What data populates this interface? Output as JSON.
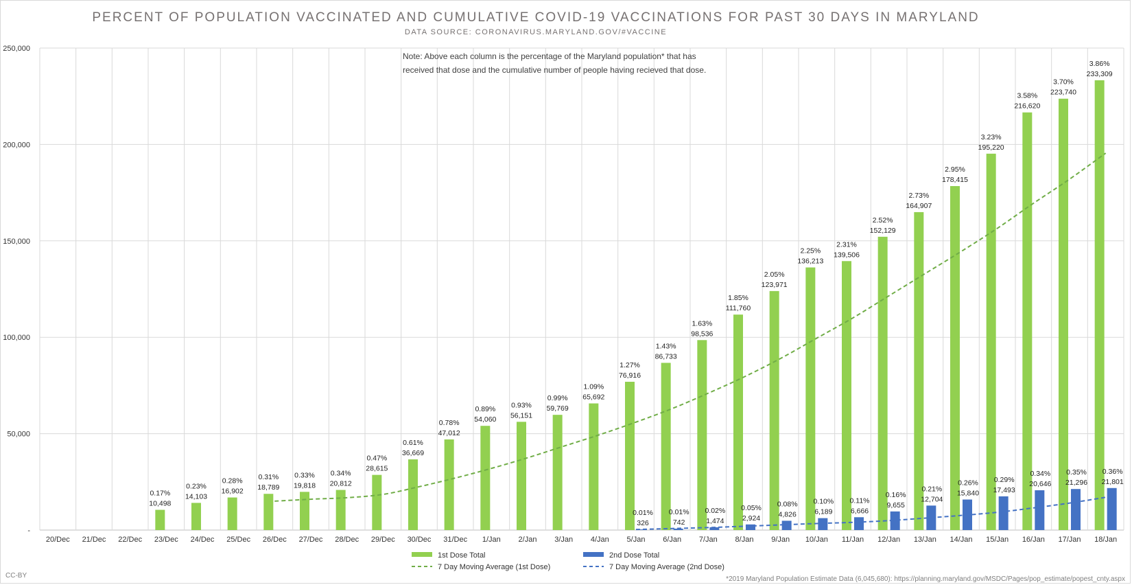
{
  "chart_data": {
    "type": "bar",
    "title": "PERCENT OF POPULATION VACCINATED AND CUMULATIVE COVID-19 VACCINATIONS FOR PAST 30 DAYS IN MARYLAND",
    "subtitle": "DATA SOURCE: CORONAVIRUS.MARYLAND.GOV/#VACCINE",
    "note_lines": [
      "Note: Above each column is the percentage of the Maryland population* that has",
      "received that dose and the cumulative number of people having recieved that dose."
    ],
    "ylim": [
      0,
      250000
    ],
    "yticks": [
      {
        "value": 0,
        "label": "-"
      },
      {
        "value": 50000,
        "label": "50,000"
      },
      {
        "value": 100000,
        "label": "100,000"
      },
      {
        "value": 150000,
        "label": "150,000"
      },
      {
        "value": 200000,
        "label": "200,000"
      },
      {
        "value": 250000,
        "label": "250,000"
      }
    ],
    "categories": [
      "20/Dec",
      "21/Dec",
      "22/Dec",
      "23/Dec",
      "24/Dec",
      "25/Dec",
      "26/Dec",
      "27/Dec",
      "28/Dec",
      "29/Dec",
      "30/Dec",
      "31/Dec",
      "1/Jan",
      "2/Jan",
      "3/Jan",
      "4/Jan",
      "5/Jan",
      "6/Jan",
      "7/Jan",
      "8/Jan",
      "9/Jan",
      "10/Jan",
      "11/Jan",
      "12/Jan",
      "13/Jan",
      "14/Jan",
      "15/Jan",
      "16/Jan",
      "17/Jan",
      "18/Jan"
    ],
    "series": [
      {
        "name": "1st Dose Total",
        "color": "#92d050",
        "values": [
          null,
          null,
          null,
          10498,
          14103,
          16902,
          18789,
          19818,
          20812,
          28615,
          36669,
          47012,
          54060,
          56151,
          59769,
          65692,
          76916,
          86733,
          98536,
          111760,
          123971,
          136213,
          139506,
          152129,
          164907,
          178415,
          195220,
          216620,
          223740,
          233309
        ],
        "value_labels": [
          "",
          "",
          "",
          "10,498",
          "14,103",
          "16,902",
          "18,789",
          "19,818",
          "20,812",
          "28,615",
          "36,669",
          "47,012",
          "54,060",
          "56,151",
          "59,769",
          "65,692",
          "76,916",
          "86,733",
          "98,536",
          "111,760",
          "123,971",
          "136,213",
          "139,506",
          "152,129",
          "164,907",
          "178,415",
          "195,220",
          "216,620",
          "223,740",
          "233,309"
        ],
        "percent_labels": [
          "",
          "",
          "",
          "0.17%",
          "0.23%",
          "0.28%",
          "0.31%",
          "0.33%",
          "0.34%",
          "0.47%",
          "0.61%",
          "0.78%",
          "0.89%",
          "0.93%",
          "0.99%",
          "1.09%",
          "1.27%",
          "1.43%",
          "1.63%",
          "1.85%",
          "2.05%",
          "2.25%",
          "2.31%",
          "2.52%",
          "2.73%",
          "2.95%",
          "3.23%",
          "3.58%",
          "3.70%",
          "3.86%"
        ]
      },
      {
        "name": "2nd Dose Total",
        "color": "#4472c4",
        "values": [
          null,
          null,
          null,
          null,
          null,
          null,
          null,
          null,
          null,
          null,
          null,
          null,
          null,
          null,
          null,
          null,
          326,
          742,
          1474,
          2924,
          4826,
          6189,
          6666,
          9655,
          12704,
          15840,
          17493,
          20646,
          21296,
          21801
        ],
        "value_labels": [
          "",
          "",
          "",
          "",
          "",
          "",
          "",
          "",
          "",
          "",
          "",
          "",
          "",
          "",
          "",
          "",
          "326",
          "742",
          "1,474",
          "2,924",
          "4,826",
          "6,189",
          "6,666",
          "9,655",
          "12,704",
          "15,840",
          "17,493",
          "20,646",
          "21,296",
          "21,801"
        ],
        "percent_labels": [
          "",
          "",
          "",
          "",
          "",
          "",
          "",
          "",
          "",
          "",
          "",
          "",
          "",
          "",
          "",
          "",
          "0.01%",
          "0.01%",
          "0.02%",
          "0.05%",
          "0.08%",
          "0.10%",
          "0.11%",
          "0.16%",
          "0.21%",
          "0.26%",
          "0.29%",
          "0.34%",
          "0.35%",
          "0.36%"
        ]
      }
    ],
    "trendlines": [
      {
        "name": "7 Day Moving Average (1st Dose)",
        "color": "#70ad47",
        "values": [
          null,
          null,
          null,
          null,
          null,
          null,
          15000,
          16000,
          16800,
          18500,
          22500,
          27000,
          32000,
          37500,
          43500,
          49500,
          56000,
          63000,
          71000,
          79500,
          89000,
          99500,
          110000,
          121500,
          133000,
          144500,
          156500,
          169500,
          182000,
          195500
        ]
      },
      {
        "name": "7 Day Moving Average (2nd Dose)",
        "color": "#4472c4",
        "values": [
          null,
          null,
          null,
          null,
          null,
          null,
          null,
          null,
          null,
          null,
          null,
          null,
          null,
          null,
          null,
          null,
          300,
          800,
          1300,
          2000,
          2700,
          3400,
          4000,
          4900,
          6200,
          7600,
          9200,
          11500,
          14000,
          17000
        ]
      }
    ],
    "legend": [
      {
        "label": "1st Dose Total",
        "kind": "bar",
        "color": "#92d050"
      },
      {
        "label": "2nd Dose Total",
        "kind": "bar",
        "color": "#4472c4"
      },
      {
        "label": "7 Day Moving Average (1st Dose)",
        "kind": "dash",
        "color": "#70ad47"
      },
      {
        "label": "7 Day Moving Average (2nd Dose)",
        "kind": "dash",
        "color": "#4472c4"
      }
    ],
    "legend_position": "bottom",
    "grid": true
  },
  "footer": {
    "license": "CC-BY",
    "source_note": "*2019 Maryland Population Estimate Data (6,045,680): https://planning.maryland.gov/MSDC/Pages/pop_estimate/popest_cnty.aspx"
  }
}
